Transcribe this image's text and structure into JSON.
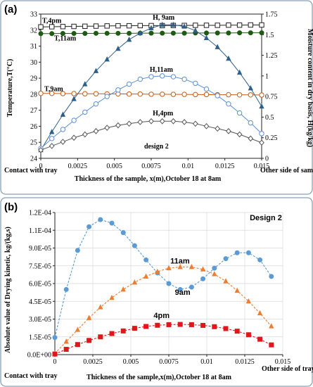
{
  "chart_data": [
    {
      "type": "line",
      "panel_label": "(a)",
      "xlabel": "Thickness  of the sample, x(m),October 18 at 8am",
      "ylabel": "Temperature,T(°C)",
      "y2label": "Moisture content in dry basis, H(kg/kg)",
      "x_left_label": "Contact with tray",
      "x_right_label": "Other side of sample",
      "annotation": "design 2",
      "xlim": [
        0,
        0.015
      ],
      "ylim": [
        24,
        33
      ],
      "y2lim": [
        0,
        1.75
      ],
      "xticks": [
        "0",
        "0.0025",
        "0.005",
        "0.0075",
        "0.01",
        "0.0125",
        "0.015"
      ],
      "yticks": [
        "24",
        "25",
        "26",
        "27",
        "28",
        "29",
        "30",
        "31",
        "32",
        "33"
      ],
      "y2ticks": [
        "0",
        "0.25",
        "0.5",
        "0.75",
        "1",
        "1.25",
        "1.5",
        "1.75"
      ],
      "grid": false,
      "x": [
        0,
        0.00075,
        0.0015,
        0.00225,
        0.003,
        0.00375,
        0.0045,
        0.00525,
        0.006,
        0.00675,
        0.0075,
        0.00825,
        0.009,
        0.00975,
        0.0105,
        0.01125,
        0.012,
        0.01275,
        0.0135,
        0.01425,
        0.015
      ],
      "series": [
        {
          "name": "T,4pm",
          "axis": "left",
          "marker": "open-square",
          "color": "#222222",
          "values": [
            32.2,
            32.21,
            32.22,
            32.23,
            32.24,
            32.25,
            32.26,
            32.27,
            32.27,
            32.28,
            32.28,
            32.28,
            32.29,
            32.29,
            32.3,
            32.3,
            32.3,
            32.31,
            32.31,
            32.32,
            32.32
          ]
        },
        {
          "name": "T,11am",
          "axis": "left",
          "marker": "filled-circle",
          "color": "#1e5a14",
          "values": [
            31.78,
            31.78,
            31.79,
            31.79,
            31.79,
            31.8,
            31.8,
            31.8,
            31.8,
            31.81,
            31.81,
            31.81,
            31.81,
            31.81,
            31.82,
            31.82,
            31.82,
            31.82,
            31.83,
            31.83,
            31.83
          ]
        },
        {
          "name": "T,9am",
          "axis": "left",
          "marker": "open-circle",
          "color": "#c55a11",
          "values": [
            28.05,
            28.05,
            28.04,
            28.04,
            28.03,
            28.03,
            28.02,
            28.02,
            28.01,
            28.01,
            28.0,
            28.0,
            27.99,
            27.99,
            27.98,
            27.98,
            27.97,
            27.97,
            27.96,
            27.96,
            27.95
          ]
        },
        {
          "name": "H, 9am",
          "axis": "right",
          "marker": "filled-triangle",
          "color": "#2e5f8a",
          "values": [
            0.1,
            0.32,
            0.53,
            0.72,
            0.9,
            1.06,
            1.2,
            1.33,
            1.44,
            1.52,
            1.58,
            1.62,
            1.62,
            1.6,
            1.55,
            1.46,
            1.35,
            1.21,
            1.04,
            0.85,
            0.63
          ]
        },
        {
          "name": "H,11am",
          "axis": "right",
          "marker": "open-circle",
          "color": "#5b8fd6",
          "values": [
            0.12,
            0.24,
            0.35,
            0.46,
            0.56,
            0.66,
            0.75,
            0.83,
            0.9,
            0.96,
            0.99,
            1.0,
            0.99,
            0.96,
            0.91,
            0.84,
            0.76,
            0.66,
            0.55,
            0.43,
            0.3
          ]
        },
        {
          "name": "H,4pm",
          "axis": "right",
          "marker": "open-diamond",
          "color": "#555555",
          "values": [
            0.1,
            0.15,
            0.2,
            0.25,
            0.29,
            0.33,
            0.37,
            0.4,
            0.42,
            0.44,
            0.45,
            0.45,
            0.45,
            0.44,
            0.42,
            0.39,
            0.36,
            0.33,
            0.29,
            0.24,
            0.19
          ]
        }
      ]
    },
    {
      "type": "line",
      "panel_label": "(b)",
      "legend_title": "Design 2",
      "xlabel": "Thickness  of the sample,x(m),October 18 at 8am",
      "ylabel": "Absolute value of Drying kinetic, kg/(kg,s)",
      "x_left_label": "Contact with tray",
      "x_right_label": "Other side of tray",
      "xlim": [
        0,
        0.015
      ],
      "ylim": [
        0,
        0.00012
      ],
      "xticks": [
        "0",
        "0.0025",
        "0.005",
        "0.0075",
        "0.01",
        "0.0125",
        "0.015"
      ],
      "yticks": [
        "0.0E+00",
        "1.5E-05",
        "3.0E-05",
        "4.5E-05",
        "6.0E-05",
        "7.5E-05",
        "9.0E-05",
        "1.1E-04",
        "1.2E-04"
      ],
      "grid": true,
      "x": [
        0,
        0.00075,
        0.0015,
        0.00225,
        0.003,
        0.00375,
        0.0045,
        0.00525,
        0.006,
        0.00675,
        0.0075,
        0.00825,
        0.009,
        0.00975,
        0.0105,
        0.01125,
        0.012,
        0.01275,
        0.0135,
        0.01425
      ],
      "series": [
        {
          "name": "9am",
          "marker": "filled-circle",
          "color": "#5b9bd5",
          "values": [
            1.45e-05,
            5.5e-05,
            8.8e-05,
            0.000108,
            0.000114,
            0.000111,
            0.000103,
            9.2e-05,
            8e-05,
            6.9e-05,
            6e-05,
            5.5e-05,
            5.7e-05,
            6.4e-05,
            7.3e-05,
            8.1e-05,
            8.6e-05,
            8.6e-05,
            8e-05,
            6.6e-05
          ]
        },
        {
          "name": "11am",
          "marker": "filled-triangle",
          "color": "#ed7d31",
          "values": [
            1e-06,
            1.1e-05,
            2.1e-05,
            3.1e-05,
            4e-05,
            4.8e-05,
            5.5e-05,
            6.1e-05,
            6.6e-05,
            7e-05,
            7.3e-05,
            7.4e-05,
            7.4e-05,
            7.2e-05,
            6.8e-05,
            6.2e-05,
            5.4e-05,
            4.5e-05,
            3.5e-05,
            2.4e-05
          ]
        },
        {
          "name": "4pm",
          "marker": "filled-square",
          "color": "#e0161b",
          "values": [
            5e-07,
            4.5e-06,
            8.5e-06,
            1.2e-05,
            1.5e-05,
            1.78e-05,
            2e-05,
            2.22e-05,
            2.38e-05,
            2.48e-05,
            2.53e-05,
            2.55e-05,
            2.53e-05,
            2.47e-05,
            2.36e-05,
            2.2e-05,
            1.98e-05,
            1.68e-05,
            1.3e-05,
            8.2e-06
          ]
        }
      ]
    }
  ]
}
